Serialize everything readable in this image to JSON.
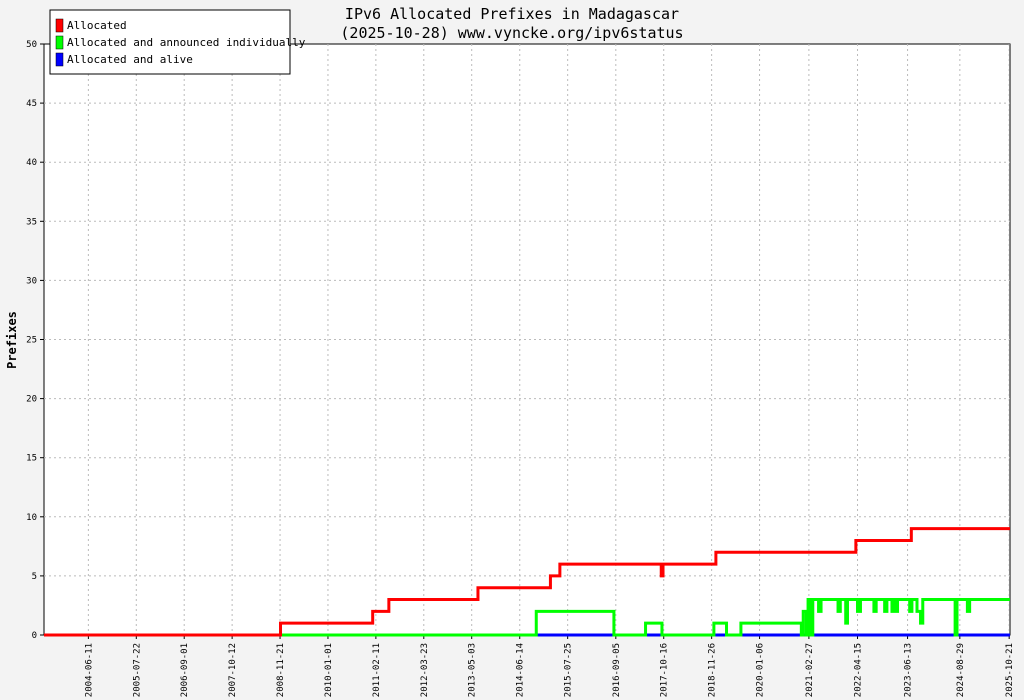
{
  "chart_data": {
    "type": "line",
    "title": "IPv6 Allocated Prefixes in Madagascar",
    "subtitle": "(2025-10-28) www.vyncke.org/ipv6status",
    "ylabel": "Prefixes",
    "xlabel": "",
    "xlim": [
      "2003-06-01",
      "2025-10-28"
    ],
    "ylim": [
      0,
      50
    ],
    "y_ticks": [
      0,
      5,
      10,
      15,
      20,
      25,
      30,
      35,
      40,
      45,
      50
    ],
    "x_ticks": [
      "2004-06-11",
      "2005-07-22",
      "2006-09-01",
      "2007-10-12",
      "2008-11-21",
      "2010-01-01",
      "2011-02-11",
      "2012-03-23",
      "2013-05-03",
      "2014-06-14",
      "2015-07-25",
      "2016-09-05",
      "2017-10-16",
      "2018-11-26",
      "2020-01-06",
      "2021-02-27",
      "2022-04-15",
      "2023-06-13",
      "2024-08-29",
      "2025-10-21"
    ],
    "grid": true,
    "legend_position": "top-left",
    "series": [
      {
        "name": "Allocated",
        "color": "#ff0000",
        "points": [
          [
            "2003-06-01",
            0
          ],
          [
            "2008-11-25",
            0
          ],
          [
            "2008-11-25",
            1
          ],
          [
            "2011-01-15",
            1
          ],
          [
            "2011-01-15",
            2
          ],
          [
            "2011-06-01",
            2
          ],
          [
            "2011-06-01",
            3
          ],
          [
            "2013-06-25",
            3
          ],
          [
            "2013-06-25",
            4
          ],
          [
            "2015-03-01",
            4
          ],
          [
            "2015-03-01",
            5
          ],
          [
            "2015-05-20",
            5
          ],
          [
            "2015-05-20",
            6
          ],
          [
            "2017-09-25",
            6
          ],
          [
            "2017-09-25",
            5
          ],
          [
            "2017-10-10",
            5
          ],
          [
            "2017-10-10",
            6
          ],
          [
            "2019-01-01",
            6
          ],
          [
            "2019-01-01",
            7
          ],
          [
            "2022-04-01",
            7
          ],
          [
            "2022-04-01",
            8
          ],
          [
            "2023-07-15",
            8
          ],
          [
            "2023-07-15",
            9
          ],
          [
            "2025-10-28",
            9
          ]
        ]
      },
      {
        "name": "Allocated and announced individually",
        "color": "#00ff00",
        "points": [
          [
            "2003-06-01",
            0
          ],
          [
            "2014-11-01",
            0
          ],
          [
            "2014-11-01",
            2
          ],
          [
            "2016-08-20",
            2
          ],
          [
            "2016-08-20",
            0
          ],
          [
            "2017-05-15",
            0
          ],
          [
            "2017-05-15",
            1
          ],
          [
            "2017-10-01",
            1
          ],
          [
            "2017-10-01",
            0
          ],
          [
            "2018-12-15",
            0
          ],
          [
            "2018-12-15",
            1
          ],
          [
            "2019-04-01",
            1
          ],
          [
            "2019-04-01",
            0
          ],
          [
            "2019-08-01",
            0
          ],
          [
            "2019-08-01",
            1
          ],
          [
            "2020-12-25",
            1
          ],
          [
            "2020-12-25",
            0
          ],
          [
            "2021-01-10",
            0
          ],
          [
            "2021-01-10",
            2
          ],
          [
            "2021-02-05",
            2
          ],
          [
            "2021-02-05",
            0
          ],
          [
            "2021-02-20",
            0
          ],
          [
            "2021-02-20",
            3
          ],
          [
            "2021-03-10",
            3
          ],
          [
            "2021-03-10",
            0
          ],
          [
            "2021-04-01",
            0
          ],
          [
            "2021-04-01",
            3
          ],
          [
            "2021-05-20",
            3
          ],
          [
            "2021-05-20",
            2
          ],
          [
            "2021-06-10",
            2
          ],
          [
            "2021-06-10",
            3
          ],
          [
            "2021-11-01",
            3
          ],
          [
            "2021-11-01",
            2
          ],
          [
            "2021-11-20",
            2
          ],
          [
            "2021-11-20",
            3
          ],
          [
            "2022-01-05",
            3
          ],
          [
            "2022-01-05",
            1
          ],
          [
            "2022-01-20",
            1
          ],
          [
            "2022-01-20",
            3
          ],
          [
            "2022-04-15",
            3
          ],
          [
            "2022-04-15",
            2
          ],
          [
            "2022-05-10",
            2
          ],
          [
            "2022-05-10",
            3
          ],
          [
            "2022-09-01",
            3
          ],
          [
            "2022-09-01",
            2
          ],
          [
            "2022-09-20",
            2
          ],
          [
            "2022-09-20",
            3
          ],
          [
            "2022-12-01",
            3
          ],
          [
            "2022-12-01",
            2
          ],
          [
            "2022-12-20",
            2
          ],
          [
            "2022-12-20",
            3
          ],
          [
            "2023-02-01",
            3
          ],
          [
            "2023-02-01",
            2
          ],
          [
            "2023-02-15",
            2
          ],
          [
            "2023-02-15",
            3
          ],
          [
            "2023-03-01",
            3
          ],
          [
            "2023-03-01",
            2
          ],
          [
            "2023-03-20",
            2
          ],
          [
            "2023-03-20",
            3
          ],
          [
            "2023-07-01",
            3
          ],
          [
            "2023-07-01",
            2
          ],
          [
            "2023-07-20",
            2
          ],
          [
            "2023-07-20",
            3
          ],
          [
            "2023-09-01",
            3
          ],
          [
            "2023-09-01",
            2
          ],
          [
            "2023-10-01",
            2
          ],
          [
            "2023-10-01",
            1
          ],
          [
            "2023-10-20",
            1
          ],
          [
            "2023-10-20",
            3
          ],
          [
            "2024-07-20",
            3
          ],
          [
            "2024-07-20",
            0
          ],
          [
            "2024-08-05",
            0
          ],
          [
            "2024-08-05",
            3
          ],
          [
            "2024-11-01",
            3
          ],
          [
            "2024-11-01",
            2
          ],
          [
            "2024-11-20",
            2
          ],
          [
            "2024-11-20",
            3
          ],
          [
            "2025-10-28",
            3
          ]
        ]
      },
      {
        "name": "Allocated and alive",
        "color": "#0000ff",
        "points": [
          [
            "2003-06-01",
            0
          ],
          [
            "2025-10-28",
            0
          ]
        ]
      }
    ]
  }
}
